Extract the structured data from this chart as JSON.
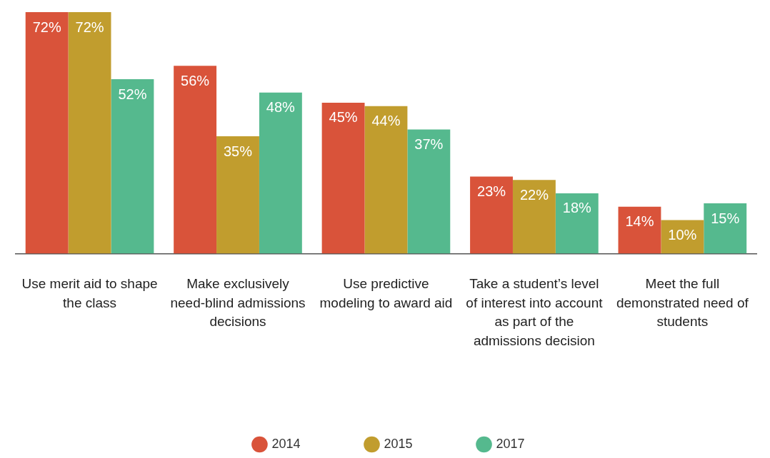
{
  "chart_data": {
    "type": "bar",
    "categories": [
      "Use merit aid to shape the class",
      "Make exclusively need-blind admissions decisions",
      "Use predictive modeling to award aid",
      "Take a student’s level of interest into account as part of the admissions decision",
      "Meet the full demonstrated need of students"
    ],
    "series": [
      {
        "name": "2014",
        "color": "#d9533a",
        "values": [
          72,
          56,
          45,
          23,
          14
        ],
        "value_labels": [
          "72%",
          "56%",
          "45%",
          "23%",
          "14%"
        ]
      },
      {
        "name": "2015",
        "color": "#c19d2e",
        "values": [
          72,
          35,
          44,
          22,
          10
        ],
        "value_labels": [
          "72%",
          "35%",
          "44%",
          "22%",
          "10%"
        ]
      },
      {
        "name": "2017",
        "color": "#55b98e",
        "values": [
          52,
          48,
          37,
          18,
          15
        ],
        "value_labels": [
          "52%",
          "48%",
          "37%",
          "18%",
          "15%"
        ]
      }
    ],
    "ylim": [
      0,
      72
    ],
    "tick_labels": "x",
    "grid": false,
    "legend": "bottom",
    "marker": "circle"
  }
}
